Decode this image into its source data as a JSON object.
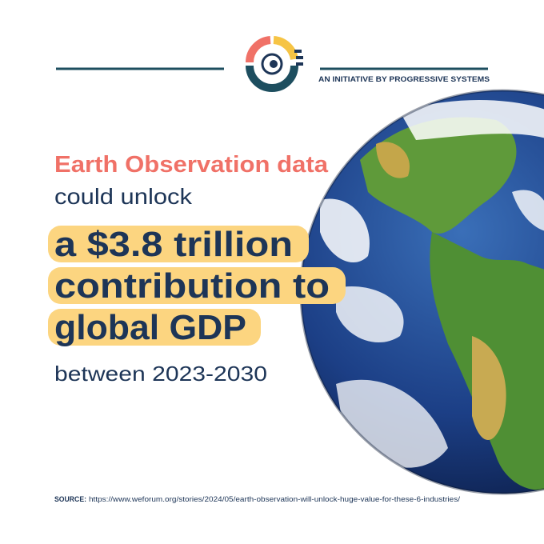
{
  "header": {
    "tagline": "AN INITIATIVE BY PROGRESSIVE SYSTEMS"
  },
  "headline": {
    "intro": "Earth Observation data",
    "lead": "could unlock",
    "highlight_lines": [
      "a $3.8 trillion",
      "contribution to",
      "global GDP"
    ],
    "period": "between 2023-2030"
  },
  "source": {
    "label": "SOURCE:",
    "url": "https://www.weforum.org/stories/2024/05/earth-observation-will-unlock-huge-value-for-these-6-industries/"
  }
}
